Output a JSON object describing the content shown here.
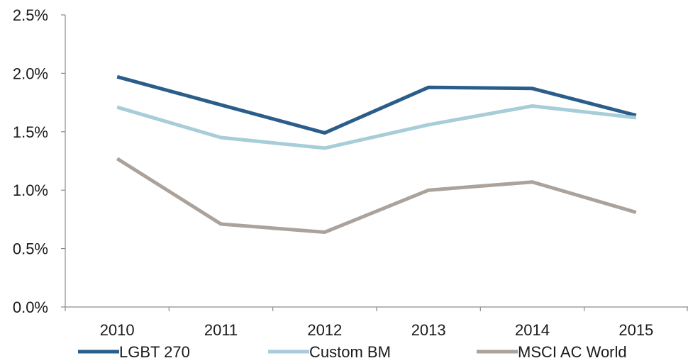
{
  "chart_data": {
    "type": "line",
    "title": "",
    "xlabel": "",
    "ylabel": "",
    "categories": [
      "2010",
      "2011",
      "2012",
      "2013",
      "2014",
      "2015"
    ],
    "y_tick_labels": [
      "0.0%",
      "0.5%",
      "1.0%",
      "1.5%",
      "2.0%",
      "2.5%"
    ],
    "ylim": [
      0,
      2.5
    ],
    "grid": false,
    "legend_position": "bottom",
    "series": [
      {
        "name": "LGBT 270",
        "color": "#2b5d8a",
        "values": [
          1.97,
          1.73,
          1.49,
          1.88,
          1.87,
          1.64
        ]
      },
      {
        "name": "Custom BM",
        "color": "#a6cdd8",
        "values": [
          1.71,
          1.45,
          1.36,
          1.56,
          1.72,
          1.62
        ]
      },
      {
        "name": "MSCI AC World",
        "color": "#aba29b",
        "values": [
          1.27,
          0.71,
          0.64,
          1.0,
          1.07,
          0.81
        ]
      }
    ]
  }
}
